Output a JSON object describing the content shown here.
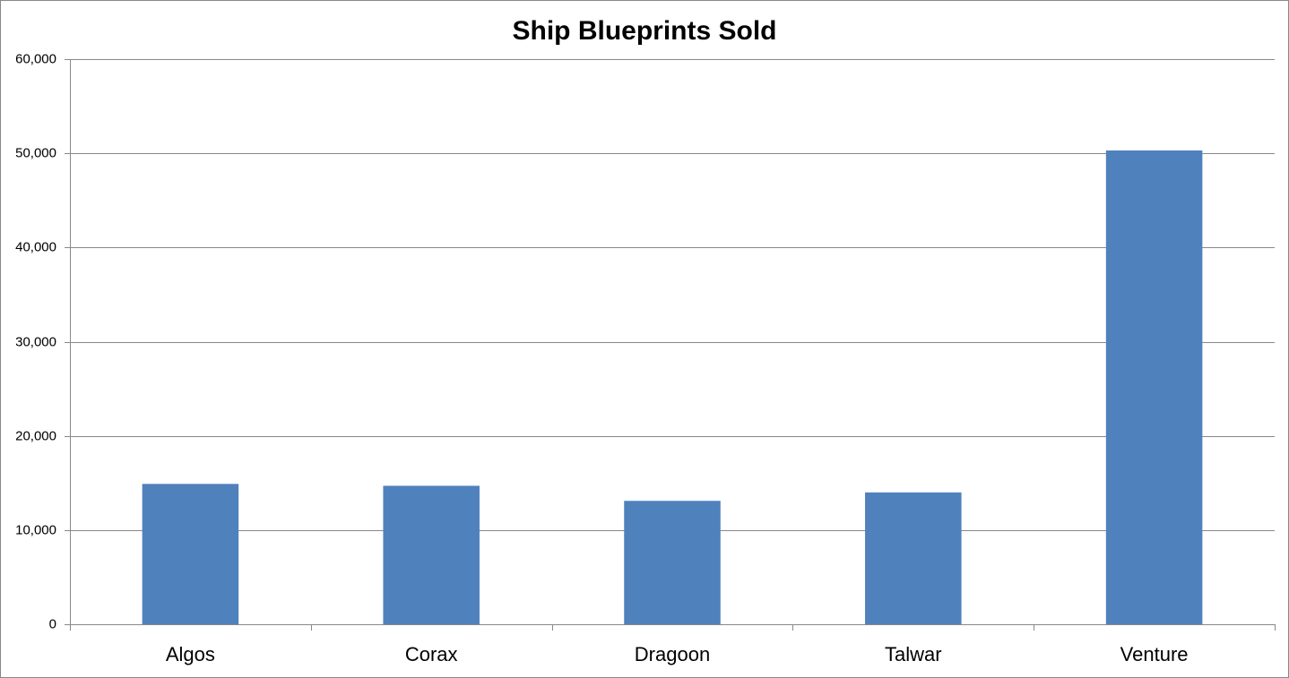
{
  "chart_data": {
    "type": "bar",
    "title": "Ship Blueprints Sold",
    "categories": [
      "Algos",
      "Corax",
      "Dragoon",
      "Talwar",
      "Venture"
    ],
    "values": [
      14900,
      14700,
      13100,
      14000,
      50300
    ],
    "color": "#4f81bd",
    "ylim": [
      0,
      60000
    ],
    "yticks": [
      0,
      {
        "value": 10000,
        "label": "10,000"
      },
      {
        "value": 20000,
        "label": "20,000"
      },
      {
        "value": 30000,
        "label": "30,000"
      },
      {
        "value": 40000,
        "label": "40,000"
      },
      {
        "value": 50000,
        "label": "50,000"
      },
      {
        "value": 60000,
        "label": "60,000"
      }
    ],
    "grid": true
  }
}
